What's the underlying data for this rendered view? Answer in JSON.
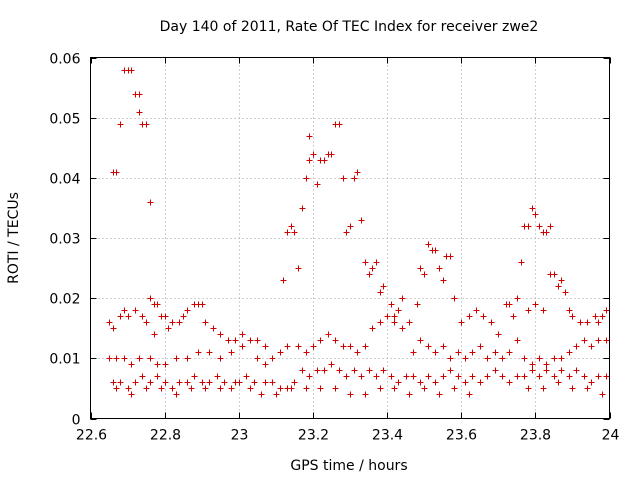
{
  "chart_data": {
    "type": "scatter",
    "title": "Day 140 of 2011, Rate Of TEC Index for receiver zwe2",
    "xlabel": "GPS time / hours",
    "ylabel": "ROTI / TECUs",
    "xlim": [
      22.6,
      24.0
    ],
    "ylim": [
      0,
      0.06
    ],
    "x_ticks": [
      22.6,
      22.8,
      23.0,
      23.2,
      23.4,
      23.6,
      23.8,
      24.0
    ],
    "x_tick_labels": [
      "22.6",
      "22.8",
      "23",
      "23.2",
      "23.4",
      "23.6",
      "23.8",
      "24"
    ],
    "y_ticks": [
      0,
      0.01,
      0.02,
      0.03,
      0.04,
      0.05,
      0.06
    ],
    "y_tick_labels": [
      "0",
      "0.01",
      "0.02",
      "0.03",
      "0.04",
      "0.05",
      "0.06"
    ],
    "grid": true,
    "marker": "+",
    "color": "#cc0000",
    "series": [
      {
        "name": "ROTI",
        "points": [
          [
            22.66,
            0.041
          ],
          [
            22.67,
            0.041
          ],
          [
            22.68,
            0.049
          ],
          [
            22.69,
            0.058
          ],
          [
            22.7,
            0.058
          ],
          [
            22.71,
            0.058
          ],
          [
            22.72,
            0.054
          ],
          [
            22.73,
            0.054
          ],
          [
            22.73,
            0.051
          ],
          [
            22.74,
            0.049
          ],
          [
            22.75,
            0.049
          ],
          [
            22.76,
            0.036
          ],
          [
            22.76,
            0.02
          ],
          [
            22.77,
            0.019
          ],
          [
            22.78,
            0.019
          ],
          [
            22.79,
            0.017
          ],
          [
            22.8,
            0.017
          ],
          [
            22.81,
            0.015
          ],
          [
            22.82,
            0.016
          ],
          [
            22.84,
            0.016
          ],
          [
            22.85,
            0.017
          ],
          [
            22.86,
            0.018
          ],
          [
            22.88,
            0.019
          ],
          [
            22.89,
            0.019
          ],
          [
            22.9,
            0.019
          ],
          [
            22.65,
            0.016
          ],
          [
            22.66,
            0.015
          ],
          [
            22.68,
            0.017
          ],
          [
            22.69,
            0.018
          ],
          [
            22.7,
            0.017
          ],
          [
            22.72,
            0.018
          ],
          [
            22.74,
            0.017
          ],
          [
            22.75,
            0.016
          ],
          [
            22.77,
            0.014
          ],
          [
            22.65,
            0.01
          ],
          [
            22.67,
            0.01
          ],
          [
            22.69,
            0.01
          ],
          [
            22.71,
            0.009
          ],
          [
            22.73,
            0.01
          ],
          [
            22.76,
            0.01
          ],
          [
            22.78,
            0.009
          ],
          [
            22.8,
            0.009
          ],
          [
            22.83,
            0.01
          ],
          [
            22.86,
            0.01
          ],
          [
            22.89,
            0.011
          ],
          [
            22.92,
            0.011
          ],
          [
            22.95,
            0.01
          ],
          [
            22.98,
            0.011
          ],
          [
            23.01,
            0.012
          ],
          [
            22.66,
            0.006
          ],
          [
            22.68,
            0.006
          ],
          [
            22.7,
            0.005
          ],
          [
            22.72,
            0.006
          ],
          [
            22.74,
            0.007
          ],
          [
            22.76,
            0.006
          ],
          [
            22.78,
            0.007
          ],
          [
            22.8,
            0.006
          ],
          [
            22.82,
            0.005
          ],
          [
            22.84,
            0.006
          ],
          [
            22.86,
            0.006
          ],
          [
            22.88,
            0.007
          ],
          [
            22.9,
            0.006
          ],
          [
            22.92,
            0.006
          ],
          [
            22.94,
            0.007
          ],
          [
            22.96,
            0.006
          ],
          [
            22.98,
            0.005
          ],
          [
            23.0,
            0.006
          ],
          [
            23.02,
            0.007
          ],
          [
            23.04,
            0.006
          ],
          [
            22.67,
            0.005
          ],
          [
            22.71,
            0.004
          ],
          [
            22.75,
            0.005
          ],
          [
            22.79,
            0.005
          ],
          [
            22.83,
            0.004
          ],
          [
            22.87,
            0.005
          ],
          [
            22.91,
            0.005
          ],
          [
            22.95,
            0.005
          ],
          [
            22.99,
            0.006
          ],
          [
            23.03,
            0.005
          ],
          [
            22.91,
            0.016
          ],
          [
            22.93,
            0.015
          ],
          [
            22.95,
            0.014
          ],
          [
            22.97,
            0.013
          ],
          [
            22.99,
            0.013
          ],
          [
            23.01,
            0.014
          ],
          [
            23.03,
            0.013
          ],
          [
            23.05,
            0.013
          ],
          [
            23.07,
            0.012
          ],
          [
            23.05,
            0.01
          ],
          [
            23.07,
            0.009
          ],
          [
            23.09,
            0.01
          ],
          [
            23.11,
            0.011
          ],
          [
            23.13,
            0.012
          ],
          [
            23.07,
            0.006
          ],
          [
            23.09,
            0.006
          ],
          [
            23.11,
            0.005
          ],
          [
            23.13,
            0.005
          ],
          [
            23.15,
            0.006
          ],
          [
            23.06,
            0.004
          ],
          [
            23.1,
            0.004
          ],
          [
            23.14,
            0.005
          ],
          [
            23.18,
            0.005
          ],
          [
            23.22,
            0.005
          ],
          [
            23.12,
            0.023
          ],
          [
            23.13,
            0.031
          ],
          [
            23.14,
            0.032
          ],
          [
            23.15,
            0.031
          ],
          [
            23.16,
            0.025
          ],
          [
            23.17,
            0.035
          ],
          [
            23.18,
            0.04
          ],
          [
            23.19,
            0.043
          ],
          [
            23.19,
            0.047
          ],
          [
            23.2,
            0.044
          ],
          [
            23.21,
            0.039
          ],
          [
            23.22,
            0.043
          ],
          [
            23.23,
            0.043
          ],
          [
            23.24,
            0.044
          ],
          [
            23.25,
            0.044
          ],
          [
            23.26,
            0.049
          ],
          [
            23.27,
            0.049
          ],
          [
            23.28,
            0.04
          ],
          [
            23.29,
            0.031
          ],
          [
            23.3,
            0.032
          ],
          [
            23.31,
            0.04
          ],
          [
            23.32,
            0.041
          ],
          [
            23.33,
            0.033
          ],
          [
            23.34,
            0.026
          ],
          [
            23.35,
            0.024
          ],
          [
            23.36,
            0.025
          ],
          [
            23.37,
            0.026
          ],
          [
            23.38,
            0.021
          ],
          [
            23.39,
            0.022
          ],
          [
            23.4,
            0.017
          ],
          [
            23.41,
            0.019
          ],
          [
            23.42,
            0.017
          ],
          [
            23.43,
            0.018
          ],
          [
            23.44,
            0.02
          ],
          [
            23.16,
            0.012
          ],
          [
            23.18,
            0.011
          ],
          [
            23.2,
            0.012
          ],
          [
            23.22,
            0.013
          ],
          [
            23.24,
            0.014
          ],
          [
            23.26,
            0.013
          ],
          [
            23.28,
            0.012
          ],
          [
            23.3,
            0.012
          ],
          [
            23.32,
            0.011
          ],
          [
            23.34,
            0.012
          ],
          [
            23.17,
            0.008
          ],
          [
            23.19,
            0.007
          ],
          [
            23.21,
            0.008
          ],
          [
            23.23,
            0.008
          ],
          [
            23.25,
            0.009
          ],
          [
            23.27,
            0.008
          ],
          [
            23.29,
            0.007
          ],
          [
            23.31,
            0.008
          ],
          [
            23.33,
            0.007
          ],
          [
            23.35,
            0.008
          ],
          [
            23.37,
            0.007
          ],
          [
            23.39,
            0.008
          ],
          [
            23.41,
            0.007
          ],
          [
            23.43,
            0.006
          ],
          [
            23.45,
            0.007
          ],
          [
            23.26,
            0.005
          ],
          [
            23.3,
            0.004
          ],
          [
            23.34,
            0.004
          ],
          [
            23.38,
            0.005
          ],
          [
            23.42,
            0.005
          ],
          [
            23.46,
            0.004
          ],
          [
            23.5,
            0.005
          ],
          [
            23.54,
            0.004
          ],
          [
            23.58,
            0.005
          ],
          [
            23.62,
            0.004
          ],
          [
            23.36,
            0.015
          ],
          [
            23.38,
            0.016
          ],
          [
            23.4,
            0.017
          ],
          [
            23.42,
            0.016
          ],
          [
            23.44,
            0.015
          ],
          [
            23.46,
            0.016
          ],
          [
            23.48,
            0.019
          ],
          [
            23.49,
            0.025
          ],
          [
            23.5,
            0.024
          ],
          [
            23.51,
            0.029
          ],
          [
            23.52,
            0.028
          ],
          [
            23.53,
            0.028
          ],
          [
            23.54,
            0.025
          ],
          [
            23.55,
            0.023
          ],
          [
            23.56,
            0.027
          ],
          [
            23.57,
            0.027
          ],
          [
            23.58,
            0.02
          ],
          [
            23.6,
            0.016
          ],
          [
            23.62,
            0.017
          ],
          [
            23.64,
            0.018
          ],
          [
            23.66,
            0.017
          ],
          [
            23.68,
            0.016
          ],
          [
            23.7,
            0.014
          ],
          [
            23.47,
            0.011
          ],
          [
            23.49,
            0.013
          ],
          [
            23.51,
            0.012
          ],
          [
            23.53,
            0.011
          ],
          [
            23.55,
            0.012
          ],
          [
            23.57,
            0.01
          ],
          [
            23.59,
            0.011
          ],
          [
            23.61,
            0.01
          ],
          [
            23.63,
            0.011
          ],
          [
            23.65,
            0.012
          ],
          [
            23.47,
            0.007
          ],
          [
            23.49,
            0.006
          ],
          [
            23.51,
            0.007
          ],
          [
            23.53,
            0.006
          ],
          [
            23.55,
            0.007
          ],
          [
            23.57,
            0.008
          ],
          [
            23.59,
            0.007
          ],
          [
            23.61,
            0.006
          ],
          [
            23.63,
            0.007
          ],
          [
            23.65,
            0.006
          ],
          [
            23.67,
            0.007
          ],
          [
            23.69,
            0.008
          ],
          [
            23.71,
            0.007
          ],
          [
            23.73,
            0.006
          ],
          [
            23.75,
            0.007
          ],
          [
            23.67,
            0.01
          ],
          [
            23.69,
            0.011
          ],
          [
            23.71,
            0.01
          ],
          [
            23.73,
            0.011
          ],
          [
            23.75,
            0.013
          ],
          [
            23.72,
            0.019
          ],
          [
            23.73,
            0.019
          ],
          [
            23.74,
            0.017
          ],
          [
            23.75,
            0.02
          ],
          [
            23.76,
            0.026
          ],
          [
            23.77,
            0.032
          ],
          [
            23.78,
            0.032
          ],
          [
            23.79,
            0.035
          ],
          [
            23.8,
            0.034
          ],
          [
            23.81,
            0.032
          ],
          [
            23.82,
            0.031
          ],
          [
            23.83,
            0.031
          ],
          [
            23.84,
            0.032
          ],
          [
            23.84,
            0.024
          ],
          [
            23.85,
            0.024
          ],
          [
            23.86,
            0.022
          ],
          [
            23.87,
            0.023
          ],
          [
            23.88,
            0.021
          ],
          [
            23.89,
            0.018
          ],
          [
            23.9,
            0.017
          ],
          [
            23.92,
            0.016
          ],
          [
            23.94,
            0.016
          ],
          [
            23.96,
            0.017
          ],
          [
            23.97,
            0.016
          ],
          [
            23.98,
            0.017
          ],
          [
            23.99,
            0.018
          ],
          [
            23.78,
            0.018
          ],
          [
            23.8,
            0.019
          ],
          [
            23.82,
            0.018
          ],
          [
            23.77,
            0.01
          ],
          [
            23.79,
            0.009
          ],
          [
            23.81,
            0.01
          ],
          [
            23.83,
            0.009
          ],
          [
            23.85,
            0.01
          ],
          [
            23.87,
            0.01
          ],
          [
            23.89,
            0.011
          ],
          [
            23.91,
            0.012
          ],
          [
            23.93,
            0.013
          ],
          [
            23.95,
            0.012
          ],
          [
            23.97,
            0.013
          ],
          [
            23.99,
            0.013
          ],
          [
            23.77,
            0.007
          ],
          [
            23.79,
            0.008
          ],
          [
            23.81,
            0.007
          ],
          [
            23.83,
            0.008
          ],
          [
            23.85,
            0.007
          ],
          [
            23.87,
            0.008
          ],
          [
            23.89,
            0.007
          ],
          [
            23.91,
            0.008
          ],
          [
            23.93,
            0.007
          ],
          [
            23.95,
            0.006
          ],
          [
            23.97,
            0.007
          ],
          [
            23.99,
            0.007
          ],
          [
            23.78,
            0.005
          ],
          [
            23.82,
            0.005
          ],
          [
            23.86,
            0.006
          ],
          [
            23.9,
            0.005
          ],
          [
            23.94,
            0.005
          ],
          [
            23.98,
            0.004
          ]
        ]
      }
    ]
  }
}
